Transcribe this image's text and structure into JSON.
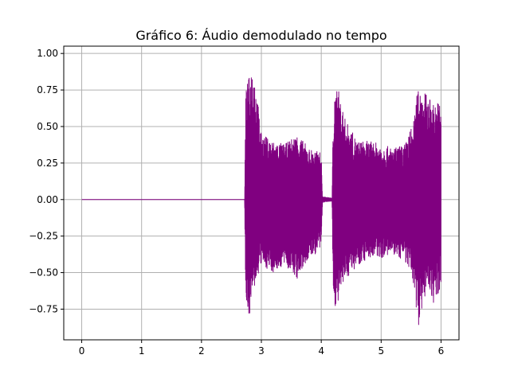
{
  "chart_data": {
    "type": "line",
    "title": "Gráfico 6: Áudio demodulado no tempo",
    "xlabel": "",
    "ylabel": "",
    "xlim": [
      -0.3,
      6.3
    ],
    "ylim": [
      -0.96,
      1.05
    ],
    "grid": true,
    "x_ticks": [
      0,
      1,
      2,
      3,
      4,
      5,
      6
    ],
    "x_tick_labels": [
      "0",
      "1",
      "2",
      "3",
      "4",
      "5",
      "6"
    ],
    "y_ticks": [
      -0.75,
      -0.5,
      -0.25,
      0.0,
      0.25,
      0.5,
      0.75,
      1.0
    ],
    "y_tick_labels": [
      "−0.75",
      "−0.50",
      "−0.25",
      "0.00",
      "0.25",
      "0.50",
      "0.75",
      "1.00"
    ],
    "series": [
      {
        "color": "#800080",
        "envelope": [
          {
            "t": 0.0,
            "lo": 0.0,
            "hi": 0.0
          },
          {
            "t": 2.72,
            "lo": 0.0,
            "hi": 0.0
          },
          {
            "t": 2.74,
            "lo": -0.7,
            "hi": 0.75
          },
          {
            "t": 2.8,
            "lo": -0.8,
            "hi": 0.85
          },
          {
            "t": 2.86,
            "lo": -0.65,
            "hi": 0.96
          },
          {
            "t": 2.92,
            "lo": -0.55,
            "hi": 0.75
          },
          {
            "t": 3.0,
            "lo": -0.45,
            "hi": 0.45
          },
          {
            "t": 3.2,
            "lo": -0.5,
            "hi": 0.4
          },
          {
            "t": 3.4,
            "lo": -0.45,
            "hi": 0.38
          },
          {
            "t": 3.6,
            "lo": -0.55,
            "hi": 0.45
          },
          {
            "t": 3.8,
            "lo": -0.4,
            "hi": 0.35
          },
          {
            "t": 4.0,
            "lo": -0.35,
            "hi": 0.32
          },
          {
            "t": 4.02,
            "lo": -0.02,
            "hi": 0.02
          },
          {
            "t": 4.18,
            "lo": -0.01,
            "hi": 0.01
          },
          {
            "t": 4.2,
            "lo": -0.7,
            "hi": 0.6
          },
          {
            "t": 4.26,
            "lo": -0.75,
            "hi": 0.8
          },
          {
            "t": 4.4,
            "lo": -0.55,
            "hi": 0.55
          },
          {
            "t": 4.6,
            "lo": -0.45,
            "hi": 0.4
          },
          {
            "t": 4.8,
            "lo": -0.4,
            "hi": 0.4
          },
          {
            "t": 5.0,
            "lo": -0.4,
            "hi": 0.38
          },
          {
            "t": 5.2,
            "lo": -0.38,
            "hi": 0.35
          },
          {
            "t": 5.4,
            "lo": -0.42,
            "hi": 0.38
          },
          {
            "t": 5.55,
            "lo": -0.6,
            "hi": 0.55
          },
          {
            "t": 5.62,
            "lo": -0.87,
            "hi": 0.8
          },
          {
            "t": 5.7,
            "lo": -0.7,
            "hi": 0.75
          },
          {
            "t": 5.8,
            "lo": -0.6,
            "hi": 0.7
          },
          {
            "t": 5.9,
            "lo": -0.75,
            "hi": 0.65
          },
          {
            "t": 6.0,
            "lo": -0.6,
            "hi": 0.7
          }
        ]
      }
    ]
  }
}
